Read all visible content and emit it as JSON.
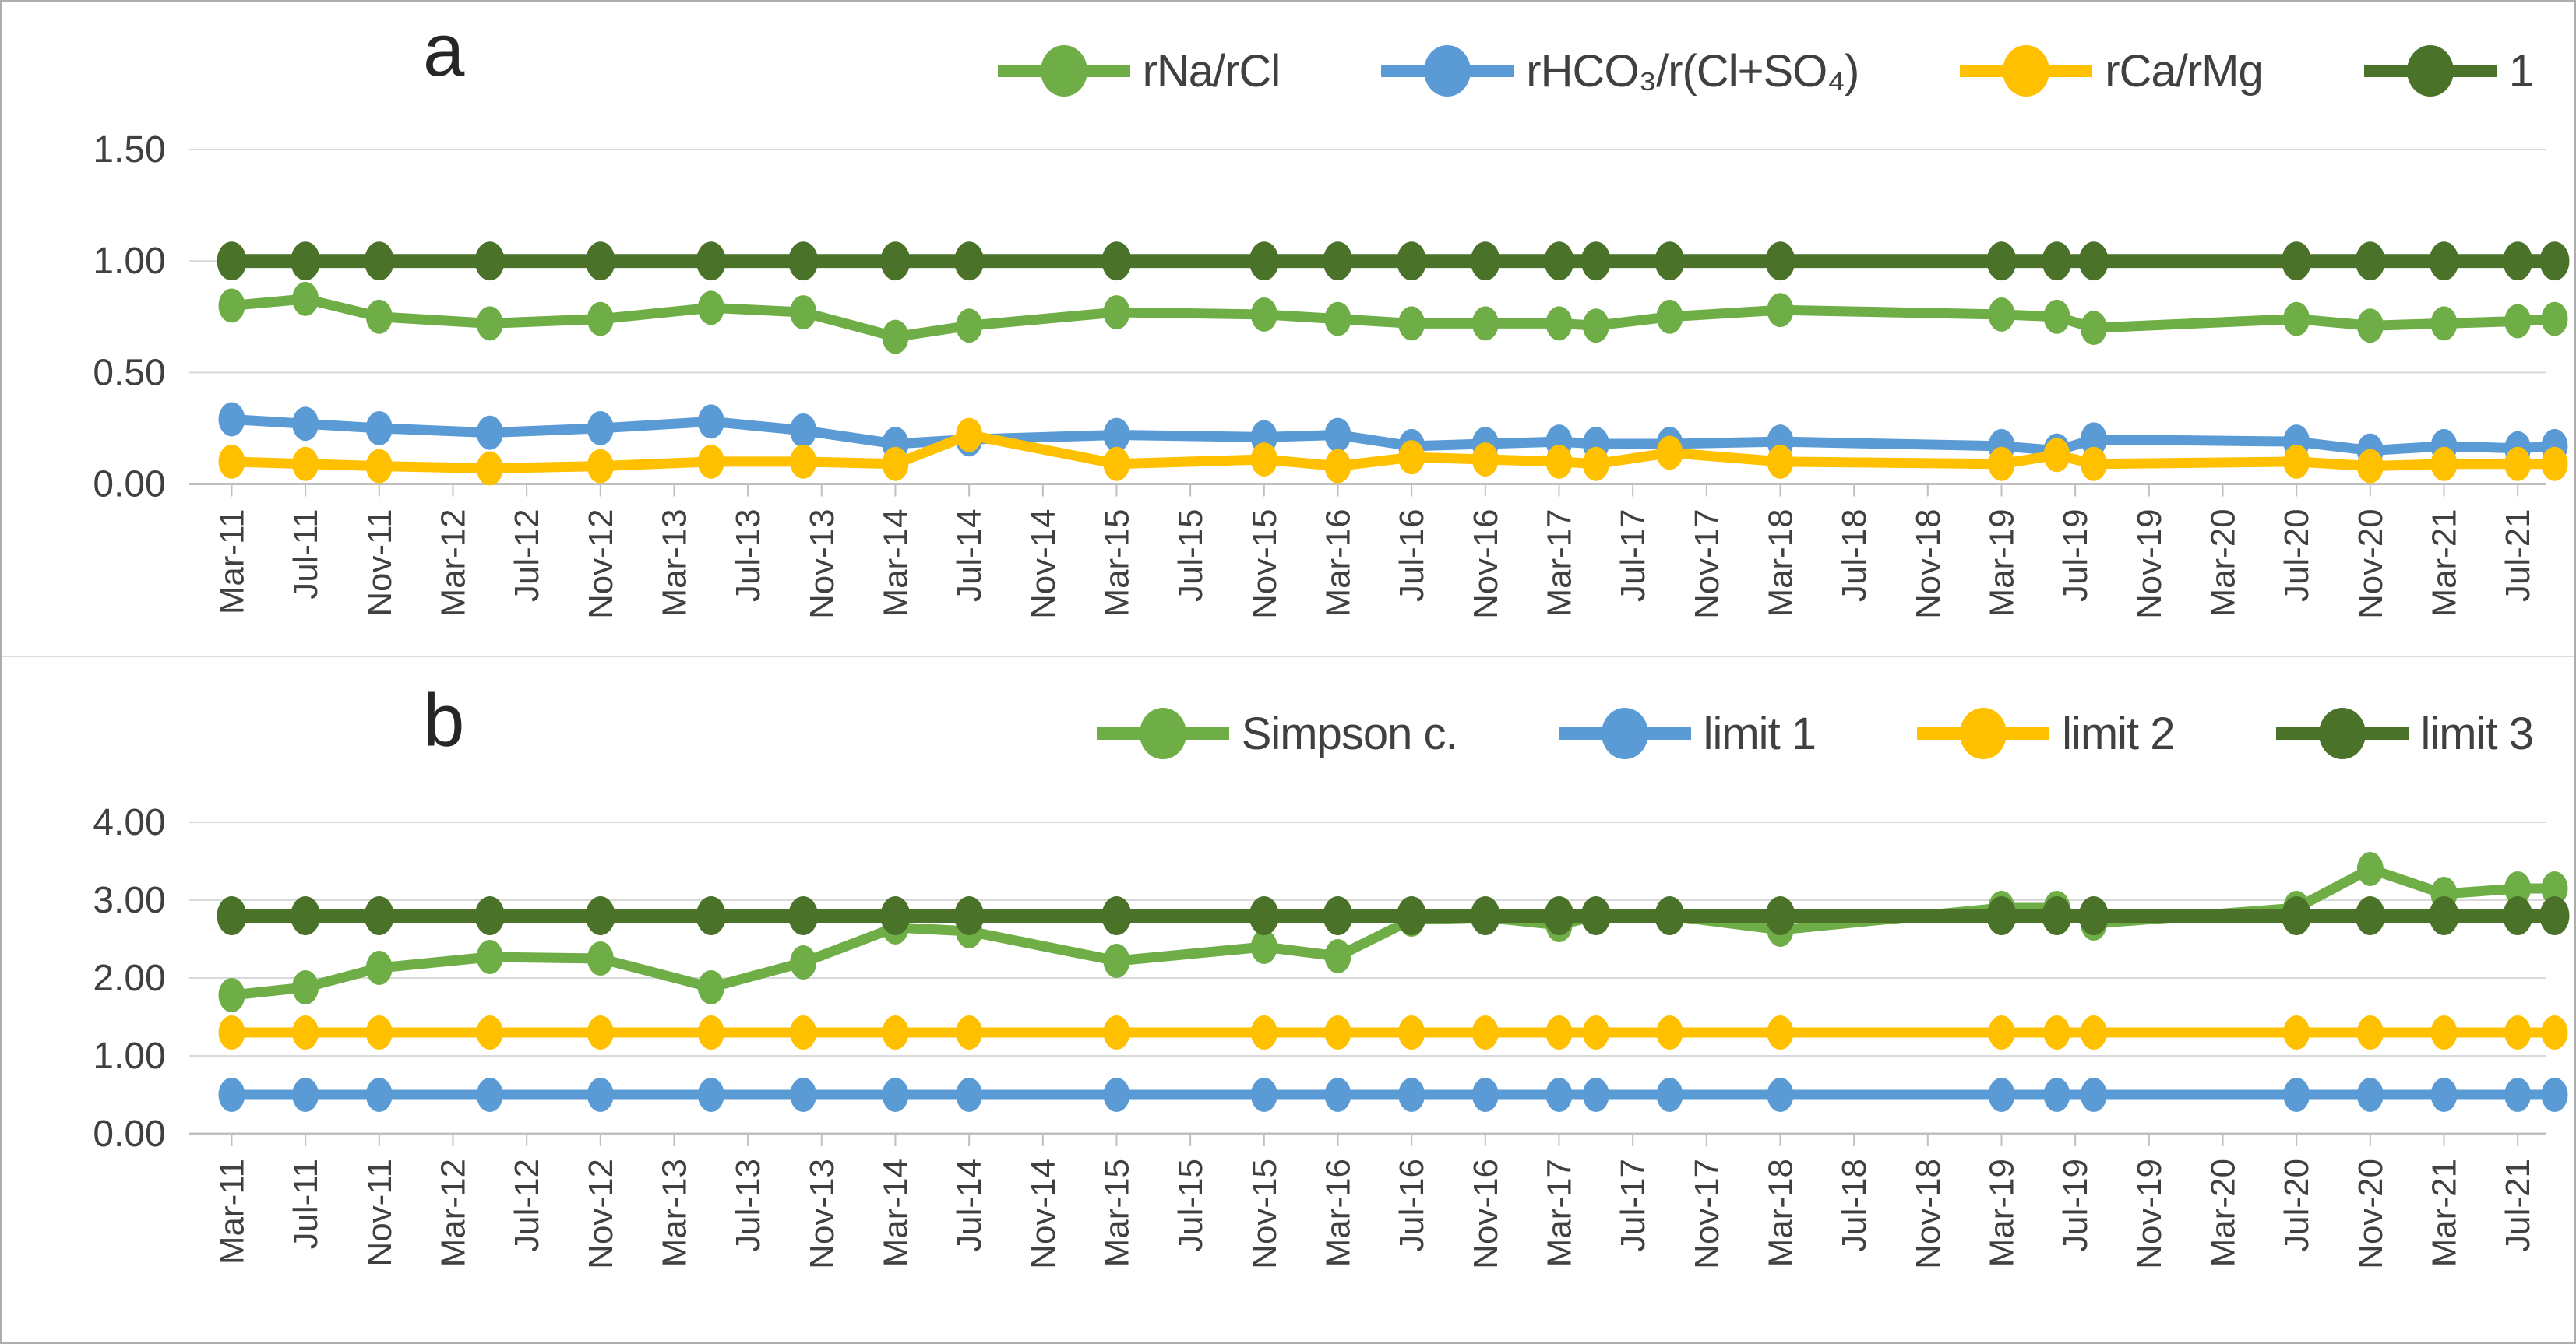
{
  "figure": {
    "background": "#ffffff",
    "border_color": "#adadad",
    "grid_color": "#d9d9d9",
    "axis_color": "#bfbfbf",
    "tick_label_color": "#404040"
  },
  "chart_data": [
    {
      "id": "a",
      "type": "line",
      "panel_label": "a",
      "legend_position": "top-right",
      "grid": "horizontal",
      "ylim": [
        0,
        1.75
      ],
      "yticks": [
        0.0,
        0.5,
        1.0,
        1.5
      ],
      "ytick_labels": [
        "0.00",
        "0.50",
        "1.00",
        "1.50"
      ],
      "x_range_months": [
        0,
        127
      ],
      "x_tick_months": [
        0,
        4,
        8,
        12,
        16,
        20,
        24,
        28,
        32,
        36,
        40,
        44,
        48,
        52,
        56,
        60,
        64,
        68,
        72,
        76,
        80,
        84,
        88,
        92,
        96,
        100,
        104,
        108,
        112,
        116,
        120,
        124
      ],
      "x_tick_labels": [
        "Mar-11",
        "Jul-11",
        "Nov-11",
        "Mar-12",
        "Jul-12",
        "Nov-12",
        "Mar-13",
        "Jul-13",
        "Nov-13",
        "Mar-14",
        "Jul-14",
        "Nov-14",
        "Mar-15",
        "Jul-15",
        "Nov-15",
        "Mar-16",
        "Jul-16",
        "Nov-16",
        "Mar-17",
        "Jul-17",
        "Nov-17",
        "Mar-18",
        "Jul-18",
        "Nov-18",
        "Mar-19",
        "Jul-19",
        "Nov-19",
        "Mar-20",
        "Jul-20",
        "Nov-20",
        "Mar-21",
        "Jul-21"
      ],
      "sample_months": [
        0,
        4,
        8,
        14,
        20,
        26,
        31,
        36,
        40,
        48,
        56,
        60,
        64,
        68,
        72,
        74,
        78,
        84,
        96,
        99,
        101,
        112,
        116,
        120,
        124,
        126
      ],
      "series": [
        {
          "name": "rNa/rCl",
          "color": "#6fad47",
          "emphasis": false,
          "values": [
            0.8,
            0.83,
            0.75,
            0.72,
            0.74,
            0.79,
            0.77,
            0.66,
            0.71,
            0.77,
            0.76,
            0.74,
            0.72,
            0.72,
            0.72,
            0.71,
            0.75,
            0.78,
            0.76,
            0.75,
            0.7,
            0.74,
            0.71,
            0.72,
            0.73,
            0.74
          ]
        },
        {
          "name": "rHCO₃/r(Cl+SO₄)",
          "color": "#5b9bd5",
          "emphasis": false,
          "values": [
            0.29,
            0.27,
            0.25,
            0.23,
            0.25,
            0.28,
            0.24,
            0.18,
            0.2,
            0.22,
            0.21,
            0.22,
            0.17,
            0.18,
            0.19,
            0.18,
            0.18,
            0.19,
            0.17,
            0.15,
            0.2,
            0.19,
            0.15,
            0.17,
            0.16,
            0.17
          ]
        },
        {
          "name": "rCa/rMg",
          "color": "#ffc000",
          "emphasis": false,
          "values": [
            0.1,
            0.09,
            0.08,
            0.07,
            0.08,
            0.1,
            0.1,
            0.09,
            0.22,
            0.09,
            0.11,
            0.08,
            0.12,
            0.11,
            0.1,
            0.09,
            0.14,
            0.1,
            0.09,
            0.13,
            0.09,
            0.1,
            0.08,
            0.09,
            0.09,
            0.09
          ]
        },
        {
          "name": "1",
          "color": "#4a7229",
          "emphasis": true,
          "values": [
            1.0,
            1.0,
            1.0,
            1.0,
            1.0,
            1.0,
            1.0,
            1.0,
            1.0,
            1.0,
            1.0,
            1.0,
            1.0,
            1.0,
            1.0,
            1.0,
            1.0,
            1.0,
            1.0,
            1.0,
            1.0,
            1.0,
            1.0,
            1.0,
            1.0,
            1.0
          ]
        }
      ]
    },
    {
      "id": "b",
      "type": "line",
      "panel_label": "b",
      "legend_position": "top-right",
      "grid": "horizontal",
      "ylim": [
        0,
        4.5
      ],
      "yticks": [
        0.0,
        1.0,
        2.0,
        3.0,
        4.0
      ],
      "ytick_labels": [
        "0.00",
        "1.00",
        "2.00",
        "3.00",
        "4.00"
      ],
      "x_range_months": [
        0,
        127
      ],
      "x_tick_months": [
        0,
        4,
        8,
        12,
        16,
        20,
        24,
        28,
        32,
        36,
        40,
        44,
        48,
        52,
        56,
        60,
        64,
        68,
        72,
        76,
        80,
        84,
        88,
        92,
        96,
        100,
        104,
        108,
        112,
        116,
        120,
        124
      ],
      "x_tick_labels": [
        "Mar-11",
        "Jul-11",
        "Nov-11",
        "Mar-12",
        "Jul-12",
        "Nov-12",
        "Mar-13",
        "Jul-13",
        "Nov-13",
        "Mar-14",
        "Jul-14",
        "Nov-14",
        "Mar-15",
        "Jul-15",
        "Nov-15",
        "Mar-16",
        "Jul-16",
        "Nov-16",
        "Mar-17",
        "Jul-17",
        "Nov-17",
        "Mar-18",
        "Jul-18",
        "Nov-18",
        "Mar-19",
        "Jul-19",
        "Nov-19",
        "Mar-20",
        "Jul-20",
        "Nov-20",
        "Mar-21",
        "Jul-21"
      ],
      "sample_months": [
        0,
        4,
        8,
        14,
        20,
        26,
        31,
        36,
        40,
        48,
        56,
        60,
        64,
        68,
        72,
        74,
        78,
        84,
        96,
        99,
        101,
        112,
        116,
        120,
        124,
        126
      ],
      "series": [
        {
          "name": "Simpson c.",
          "color": "#6fad47",
          "emphasis": false,
          "values": [
            1.78,
            1.88,
            2.13,
            2.27,
            2.25,
            1.88,
            2.2,
            2.65,
            2.6,
            2.22,
            2.4,
            2.28,
            2.75,
            2.78,
            2.68,
            2.8,
            2.8,
            2.62,
            2.9,
            2.9,
            2.7,
            2.9,
            3.4,
            3.08,
            3.15,
            3.15
          ]
        },
        {
          "name": "limit 1",
          "color": "#5b9bd5",
          "emphasis": false,
          "values": [
            0.5,
            0.5,
            0.5,
            0.5,
            0.5,
            0.5,
            0.5,
            0.5,
            0.5,
            0.5,
            0.5,
            0.5,
            0.5,
            0.5,
            0.5,
            0.5,
            0.5,
            0.5,
            0.5,
            0.5,
            0.5,
            0.5,
            0.5,
            0.5,
            0.5,
            0.5
          ]
        },
        {
          "name": "limit 2",
          "color": "#ffc000",
          "emphasis": false,
          "values": [
            1.3,
            1.3,
            1.3,
            1.3,
            1.3,
            1.3,
            1.3,
            1.3,
            1.3,
            1.3,
            1.3,
            1.3,
            1.3,
            1.3,
            1.3,
            1.3,
            1.3,
            1.3,
            1.3,
            1.3,
            1.3,
            1.3,
            1.3,
            1.3,
            1.3,
            1.3
          ]
        },
        {
          "name": "limit 3",
          "color": "#4a7229",
          "emphasis": true,
          "values": [
            2.8,
            2.8,
            2.8,
            2.8,
            2.8,
            2.8,
            2.8,
            2.8,
            2.8,
            2.8,
            2.8,
            2.8,
            2.8,
            2.8,
            2.8,
            2.8,
            2.8,
            2.8,
            2.8,
            2.8,
            2.8,
            2.8,
            2.8,
            2.8,
            2.8,
            2.8
          ]
        }
      ]
    }
  ]
}
